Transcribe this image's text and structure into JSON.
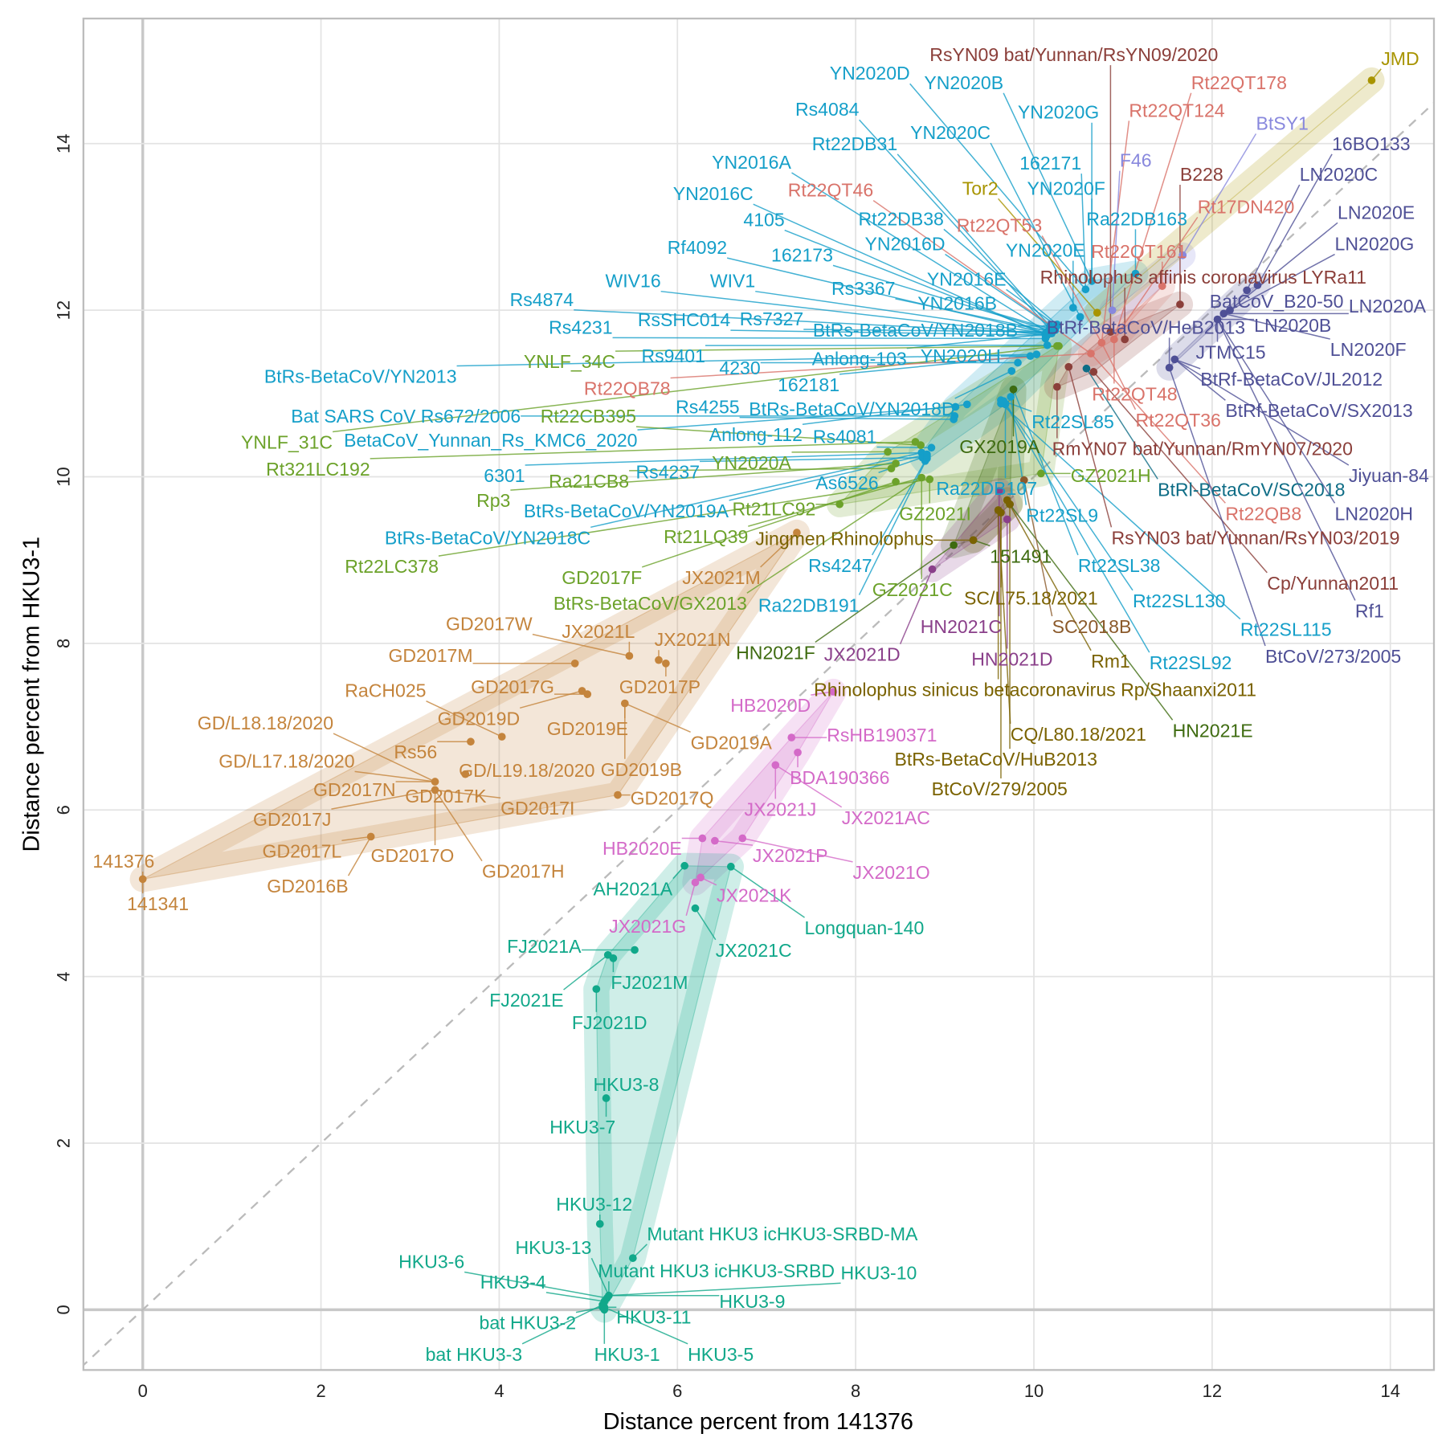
{
  "chart_data": {
    "type": "scatter",
    "xlabel": "Distance percent from 141376",
    "ylabel": "Distance percent from HKU3-1",
    "xlim": [
      -0.66,
      14.48
    ],
    "ylim": [
      -0.72,
      15.48
    ],
    "x_ticks": [
      "0",
      "2",
      "4",
      "6",
      "8",
      "10",
      "12",
      "14"
    ],
    "y_ticks": [
      "0",
      "2",
      "4",
      "6",
      "8",
      "10",
      "12",
      "14"
    ],
    "grid": true,
    "reference_line": "y = x (dashed)",
    "legend": "none",
    "group_colors": {
      "gd": "#c4843c",
      "hb": "#d46ac8",
      "hku3": "#11a88a",
      "rs": "#159fc9",
      "rt": "#6ca22a",
      "dg": "#3e6b10",
      "ol": "#7a6200",
      "br": "#8b5a2b",
      "pu": "#8a3f8a",
      "dr": "#8b3f3a",
      "qt": "#d9736a",
      "sy": "#8888dd",
      "jmd": "#a89400",
      "sl": "#0f6d86",
      "rf": "#4f5096"
    },
    "points": [
      {
        "label": "141376",
        "x": 0,
        "y": 5.17,
        "g": "gd"
      },
      {
        "label": "141341",
        "x": 0,
        "y": 5.17,
        "g": "gd"
      },
      {
        "label": "GD2016B",
        "x": 2.56,
        "y": 5.68,
        "g": "gd"
      },
      {
        "label": "GD2017L",
        "x": 2.56,
        "y": 5.68,
        "g": "gd"
      },
      {
        "label": "GD/L18.18/2020",
        "x": 3.28,
        "y": 6.34,
        "g": "gd"
      },
      {
        "label": "GD/L17.18/2020",
        "x": 3.28,
        "y": 6.34,
        "g": "gd"
      },
      {
        "label": "GD2017N",
        "x": 3.28,
        "y": 6.34,
        "g": "gd"
      },
      {
        "label": "GD2017J",
        "x": 3.28,
        "y": 6.24,
        "g": "gd"
      },
      {
        "label": "GD2017K",
        "x": 3.28,
        "y": 6.24,
        "g": "gd"
      },
      {
        "label": "GD2017O",
        "x": 3.28,
        "y": 6.24,
        "g": "gd"
      },
      {
        "label": "GD2017H",
        "x": 3.28,
        "y": 6.24,
        "g": "gd"
      },
      {
        "label": "GD2017I",
        "x": 3.28,
        "y": 6.24,
        "g": "gd"
      },
      {
        "label": "GD/L19.18/2020",
        "x": 3.62,
        "y": 6.43,
        "g": "gd"
      },
      {
        "label": "Rs56",
        "x": 3.68,
        "y": 6.82,
        "g": "gd"
      },
      {
        "label": "RaCH025",
        "x": 4.03,
        "y": 6.88,
        "g": "gd"
      },
      {
        "label": "GD2019D",
        "x": 4.93,
        "y": 7.43,
        "g": "gd"
      },
      {
        "label": "GD2017G",
        "x": 4.99,
        "y": 7.39,
        "g": "gd"
      },
      {
        "label": "GD2017M",
        "x": 4.85,
        "y": 7.76,
        "g": "gd"
      },
      {
        "label": "GD2017W",
        "x": 5.46,
        "y": 7.85,
        "g": "gd"
      },
      {
        "label": "JX2021L",
        "x": 5.46,
        "y": 7.85,
        "g": "gd"
      },
      {
        "label": "JX2021N",
        "x": 5.79,
        "y": 7.8,
        "g": "gd"
      },
      {
        "label": "GD2017P",
        "x": 5.87,
        "y": 7.76,
        "g": "gd"
      },
      {
        "label": "GD2019E",
        "x": 5.41,
        "y": 7.28,
        "g": "gd"
      },
      {
        "label": "GD2019B",
        "x": 5.41,
        "y": 7.28,
        "g": "gd"
      },
      {
        "label": "GD2019A",
        "x": 5.41,
        "y": 7.28,
        "g": "gd"
      },
      {
        "label": "GD2017Q",
        "x": 5.33,
        "y": 6.18,
        "g": "gd"
      },
      {
        "label": "JX2021M",
        "x": 7.34,
        "y": 9.33,
        "g": "gd"
      },
      {
        "label": "HB2020D",
        "x": 7.75,
        "y": 7.42,
        "g": "hb"
      },
      {
        "label": "RsHB190371",
        "x": 7.28,
        "y": 6.87,
        "g": "hb"
      },
      {
        "label": "BDA190366",
        "x": 7.35,
        "y": 6.69,
        "g": "hb"
      },
      {
        "label": "JX2021J",
        "x": 7.1,
        "y": 6.54,
        "g": "hb"
      },
      {
        "label": "JX2021AC",
        "x": 7.1,
        "y": 6.54,
        "g": "hb"
      },
      {
        "label": "HB2020E",
        "x": 6.28,
        "y": 5.66,
        "g": "hb"
      },
      {
        "label": "JX2021P",
        "x": 6.42,
        "y": 5.63,
        "g": "hb"
      },
      {
        "label": "JX2021O",
        "x": 6.73,
        "y": 5.66,
        "g": "hb"
      },
      {
        "label": "JX2021K",
        "x": 6.26,
        "y": 5.19,
        "g": "hb"
      },
      {
        "label": "JX2021G",
        "x": 6.2,
        "y": 5.13,
        "g": "hb"
      },
      {
        "label": "AH2021A",
        "x": 6.08,
        "y": 5.33,
        "g": "hku3"
      },
      {
        "label": "Longquan-140",
        "x": 6.6,
        "y": 5.32,
        "g": "hku3"
      },
      {
        "label": "JX2021C",
        "x": 6.2,
        "y": 4.82,
        "g": "hku3"
      },
      {
        "label": "FJ2021A",
        "x": 5.52,
        "y": 4.32,
        "g": "hku3"
      },
      {
        "label": "FJ2021M",
        "x": 5.28,
        "y": 4.22,
        "g": "hku3"
      },
      {
        "label": "FJ2021E",
        "x": 5.22,
        "y": 4.26,
        "g": "hku3"
      },
      {
        "label": "FJ2021D",
        "x": 5.09,
        "y": 3.85,
        "g": "hku3"
      },
      {
        "label": "HKU3-8",
        "x": 5.2,
        "y": 2.54,
        "g": "hku3"
      },
      {
        "label": "HKU3-7",
        "x": 5.2,
        "y": 2.54,
        "g": "hku3"
      },
      {
        "label": "HKU3-12",
        "x": 5.13,
        "y": 1.03,
        "g": "hku3"
      },
      {
        "label": "Mutant HKU3 icHKU3-SRBD-MA",
        "x": 5.5,
        "y": 0.62,
        "g": "hku3"
      },
      {
        "label": "HKU3-13",
        "x": 5.23,
        "y": 0.17,
        "g": "hku3"
      },
      {
        "label": "HKU3-6",
        "x": 5.21,
        "y": 0.14,
        "g": "hku3"
      },
      {
        "label": "Mutant HKU3 icHKU3-SRBD",
        "x": 5.23,
        "y": 0.17,
        "g": "hku3"
      },
      {
        "label": "HKU3-10",
        "x": 5.23,
        "y": 0.17,
        "g": "hku3"
      },
      {
        "label": "HKU3-4",
        "x": 5.18,
        "y": 0.1,
        "g": "hku3"
      },
      {
        "label": "HKU3-9",
        "x": 5.23,
        "y": 0.17,
        "g": "hku3"
      },
      {
        "label": "bat HKU3-2",
        "x": 5.16,
        "y": 0.03,
        "g": "hku3"
      },
      {
        "label": "HKU3-11",
        "x": 5.18,
        "y": 0.03,
        "g": "hku3"
      },
      {
        "label": "bat HKU3-3",
        "x": 5.16,
        "y": 0.06,
        "g": "hku3"
      },
      {
        "label": "HKU3-1",
        "x": 5.18,
        "y": 0,
        "g": "hku3"
      },
      {
        "label": "HKU3-5",
        "x": 5.18,
        "y": 0.03,
        "g": "hku3"
      },
      {
        "label": "YN2020D",
        "x": 10.58,
        "y": 12.25,
        "g": "rs"
      },
      {
        "label": "YN2020B",
        "x": 10.65,
        "y": 12.35,
        "g": "rs"
      },
      {
        "label": "Rs4084",
        "x": 10.18,
        "y": 11.77,
        "g": "rs"
      },
      {
        "label": "YN2020G",
        "x": 10.65,
        "y": 12.35,
        "g": "rs"
      },
      {
        "label": "YN2020C",
        "x": 10.52,
        "y": 11.92,
        "g": "rs"
      },
      {
        "label": "Rt22DB31",
        "x": 10.18,
        "y": 11.81,
        "g": "rs"
      },
      {
        "label": "162171",
        "x": 10.58,
        "y": 12.25,
        "g": "rs"
      },
      {
        "label": "YN2016A",
        "x": 10.15,
        "y": 11.74,
        "g": "rs"
      },
      {
        "label": "YN2020F",
        "x": 10.65,
        "y": 12.35,
        "g": "rs"
      },
      {
        "label": "YN2016C",
        "x": 10.13,
        "y": 11.7,
        "g": "rs"
      },
      {
        "label": "4105",
        "x": 10.13,
        "y": 11.72,
        "g": "rs"
      },
      {
        "label": "Rt22DB38",
        "x": 10.26,
        "y": 11.83,
        "g": "rs"
      },
      {
        "label": "Ra22DB163",
        "x": 11.14,
        "y": 12.44,
        "g": "rs"
      },
      {
        "label": "YN2016D",
        "x": 10.24,
        "y": 11.77,
        "g": "rs"
      },
      {
        "label": "Rf4092",
        "x": 10.15,
        "y": 11.72,
        "g": "rs"
      },
      {
        "label": "162173",
        "x": 10.17,
        "y": 11.76,
        "g": "rs"
      },
      {
        "label": "YN2020E",
        "x": 10.44,
        "y": 12.03,
        "g": "rs"
      },
      {
        "label": "WIV16",
        "x": 10.13,
        "y": 11.7,
        "g": "rs"
      },
      {
        "label": "WIV1",
        "x": 10.15,
        "y": 11.72,
        "g": "rs"
      },
      {
        "label": "Rs3367",
        "x": 10.2,
        "y": 11.74,
        "g": "rs"
      },
      {
        "label": "YN2016E",
        "x": 10.26,
        "y": 11.81,
        "g": "rs"
      },
      {
        "label": "YN2016B",
        "x": 10.24,
        "y": 11.76,
        "g": "rs"
      },
      {
        "label": "Rs4874",
        "x": 10.15,
        "y": 11.72,
        "g": "rs"
      },
      {
        "label": "Rs4231",
        "x": 10.13,
        "y": 11.66,
        "g": "rs"
      },
      {
        "label": "RsSHC014",
        "x": 10.15,
        "y": 11.7,
        "g": "rs"
      },
      {
        "label": "Rs7327",
        "x": 10.18,
        "y": 11.74,
        "g": "rs"
      },
      {
        "label": "BtRs-BetaCoV/YN2018B",
        "x": 10.26,
        "y": 11.81,
        "g": "rs"
      },
      {
        "label": "Anlong-103",
        "x": 10.2,
        "y": 11.72,
        "g": "rs"
      },
      {
        "label": "YN2020H",
        "x": 9.96,
        "y": 11.45,
        "g": "rs"
      },
      {
        "label": "Rs9401",
        "x": 10.15,
        "y": 11.58,
        "g": "rs"
      },
      {
        "label": "4230",
        "x": 9.82,
        "y": 11.37,
        "g": "rs"
      },
      {
        "label": "162181",
        "x": 9.96,
        "y": 11.45,
        "g": "rs"
      },
      {
        "label": "BtRs-BetaCoV/YN2013",
        "x": 10.03,
        "y": 11.47,
        "g": "rs"
      },
      {
        "label": "BtRs-BetaCoV/YN2018D",
        "x": 9.75,
        "y": 11.27,
        "g": "rs"
      },
      {
        "label": "Anlong-112",
        "x": 9.25,
        "y": 10.87,
        "g": "rs"
      },
      {
        "label": "Bat SARS CoV Rs672/2006",
        "x": 9.11,
        "y": 10.73,
        "g": "rs"
      },
      {
        "label": "BetaCoV_Yunnan_Rs_KMC6_2020",
        "x": 9.12,
        "y": 10.84,
        "g": "rs"
      },
      {
        "label": "Rs4255",
        "x": 9.1,
        "y": 10.69,
        "g": "rs"
      },
      {
        "label": "Rs4081",
        "x": 8.85,
        "y": 10.35,
        "g": "rs"
      },
      {
        "label": "6301",
        "x": 8.74,
        "y": 10.29,
        "g": "rs"
      },
      {
        "label": "Rs4237",
        "x": 8.75,
        "y": 10.23,
        "g": "rs"
      },
      {
        "label": "As6526",
        "x": 8.8,
        "y": 10.25,
        "g": "rs"
      },
      {
        "label": "Rt22SL85",
        "x": 9.63,
        "y": 10.92,
        "g": "rs"
      },
      {
        "label": "Ra22DB107",
        "x": 9.68,
        "y": 10.87,
        "g": "rs"
      },
      {
        "label": "Rt22SL9",
        "x": 9.74,
        "y": 10.96,
        "g": "rs"
      },
      {
        "label": "Rs4247",
        "x": 8.78,
        "y": 10.19,
        "g": "rs"
      },
      {
        "label": "Ra22DB191",
        "x": 8.8,
        "y": 10.22,
        "g": "rs"
      },
      {
        "label": "BtRs-BetaCoV/YN2018C",
        "x": 8.74,
        "y": 10.29,
        "g": "rs"
      },
      {
        "label": "BtRs-BetaCoV/YN2019A",
        "x": 8.8,
        "y": 10.27,
        "g": "rs"
      },
      {
        "label": "Rt22SL38",
        "x": 9.77,
        "y": 11.05,
        "g": "rs"
      },
      {
        "label": "Rt22SL130",
        "x": 9.68,
        "y": 10.88,
        "g": "rs"
      },
      {
        "label": "Rt22SL115",
        "x": 9.63,
        "y": 10.88,
        "g": "rs"
      },
      {
        "label": "Rt22SL92",
        "x": 9.66,
        "y": 10.91,
        "g": "rs"
      },
      {
        "label": "YNLF_34C",
        "x": 10.28,
        "y": 11.57,
        "g": "rt"
      },
      {
        "label": "YNLF_31C",
        "x": 10.26,
        "y": 11.57,
        "g": "rt"
      },
      {
        "label": "Rt321LC192",
        "x": 8.67,
        "y": 10.42,
        "g": "rt"
      },
      {
        "label": "Rt22CB395",
        "x": 8.73,
        "y": 10.38,
        "g": "rt"
      },
      {
        "label": "YN2020A",
        "x": 8.36,
        "y": 10.3,
        "g": "rt"
      },
      {
        "label": "Ra21CB8",
        "x": 8.4,
        "y": 10.1,
        "g": "rt"
      },
      {
        "label": "Rp3",
        "x": 8.45,
        "y": 10.16,
        "g": "rt"
      },
      {
        "label": "Rt21LQ39",
        "x": 8.74,
        "y": 9.99,
        "g": "rt"
      },
      {
        "label": "Rt21LC92",
        "x": 7.82,
        "y": 9.67,
        "g": "rt"
      },
      {
        "label": "Rt22LC378",
        "x": 8.83,
        "y": 9.97,
        "g": "rt"
      },
      {
        "label": "BtRs-BetaCoV/GX2013",
        "x": 8.74,
        "y": 9.99,
        "g": "rt"
      },
      {
        "label": "GD2017F",
        "x": 8.45,
        "y": 9.94,
        "g": "rt"
      },
      {
        "label": "GZ2021I",
        "x": 8.83,
        "y": 9.97,
        "g": "rt"
      },
      {
        "label": "GZ2021C",
        "x": 8.74,
        "y": 9.99,
        "g": "rt"
      },
      {
        "label": "GZ2021H",
        "x": 10.08,
        "y": 10.04,
        "g": "rt"
      },
      {
        "label": "GX2019A",
        "x": 9.77,
        "y": 11.05,
        "g": "dg"
      },
      {
        "label": "HN2021F",
        "x": 9.1,
        "y": 9.18,
        "g": "dg"
      },
      {
        "label": "151491",
        "x": 9.32,
        "y": 9.24,
        "g": "dg"
      },
      {
        "label": "HN2021E",
        "x": 9.73,
        "y": 9.67,
        "g": "dg"
      },
      {
        "label": "Jingmen Rhinolophus",
        "x": 9.32,
        "y": 9.24,
        "g": "ol"
      },
      {
        "label": "Rhinolophus sinicus betacoronavirus Rp/Shaanxi2011",
        "x": 9.6,
        "y": 9.6,
        "g": "ol"
      },
      {
        "label": "SC/L75.18/2021",
        "x": 9.63,
        "y": 9.57,
        "g": "ol"
      },
      {
        "label": "Rm1",
        "x": 9.7,
        "y": 9.72,
        "g": "ol"
      },
      {
        "label": "BtRs-BetaCoV/HuB2013",
        "x": 9.73,
        "y": 9.67,
        "g": "ol"
      },
      {
        "label": "CQ/L80.18/2021",
        "x": 9.6,
        "y": 9.6,
        "g": "ol"
      },
      {
        "label": "BtCoV/279/2005",
        "x": 9.63,
        "y": 9.57,
        "g": "ol"
      },
      {
        "label": "SC2018B",
        "x": 9.89,
        "y": 9.96,
        "g": "br"
      },
      {
        "label": "HN2021C",
        "x": 9.61,
        "y": 9.83,
        "g": "pu"
      },
      {
        "label": "HN2021D",
        "x": 9.7,
        "y": 9.49,
        "g": "pu"
      },
      {
        "label": "JX2021D",
        "x": 8.86,
        "y": 8.89,
        "g": "pu"
      },
      {
        "label": "RsYN09 bat/Yunnan/RsYN09/2020",
        "x": 10.86,
        "y": 11.74,
        "g": "dr"
      },
      {
        "label": "B228",
        "x": 11.64,
        "y": 12.07,
        "g": "dr"
      },
      {
        "label": "Rhinolophus affinis coronavirus LYRa11",
        "x": 11.02,
        "y": 11.65,
        "g": "dr"
      },
      {
        "label": "RmYN07 bat/Yunnan/RmYN07/2020",
        "x": 10.26,
        "y": 11.08,
        "g": "dr"
      },
      {
        "label": "RsYN03 bat/Yunnan/RsYN03/2019",
        "x": 10.39,
        "y": 11.32,
        "g": "dr"
      },
      {
        "label": "Cp/Yunnan2011",
        "x": 10.67,
        "y": 11.26,
        "g": "dr"
      },
      {
        "label": "Rt22QT178",
        "x": 10.9,
        "y": 11.65,
        "g": "qt"
      },
      {
        "label": "Rt22QT124",
        "x": 10.76,
        "y": 11.61,
        "g": "qt"
      },
      {
        "label": "Rt22QT46",
        "x": 10.64,
        "y": 11.48,
        "g": "qt"
      },
      {
        "label": "Rt22QT53",
        "x": 10.76,
        "y": 11.61,
        "g": "qt"
      },
      {
        "label": "Rt22QT161",
        "x": 11.44,
        "y": 12.29,
        "g": "qt"
      },
      {
        "label": "Rt17DN420",
        "x": 10.9,
        "y": 11.65,
        "g": "qt"
      },
      {
        "label": "Rt22QB78",
        "x": 10.64,
        "y": 11.48,
        "g": "qt"
      },
      {
        "label": "Rt22QT48",
        "x": 10.9,
        "y": 11.65,
        "g": "qt"
      },
      {
        "label": "Rt22QT36",
        "x": 10.76,
        "y": 11.61,
        "g": "qt"
      },
      {
        "label": "Rt22QB8",
        "x": 10.64,
        "y": 11.48,
        "g": "qt"
      },
      {
        "label": "BtSY1",
        "x": 11.67,
        "y": 12.66,
        "g": "sy"
      },
      {
        "label": "F46",
        "x": 10.88,
        "y": 12.0,
        "g": "sy"
      },
      {
        "label": "JMD",
        "x": 13.79,
        "y": 14.76,
        "g": "jmd"
      },
      {
        "label": "Tor2",
        "x": 10.71,
        "y": 11.97,
        "g": "jmd"
      },
      {
        "label": "BtRl-BetaCoV/SC2018",
        "x": 10.59,
        "y": 11.3,
        "g": "sl"
      },
      {
        "label": "16BO133",
        "x": 12.51,
        "y": 12.3,
        "g": "rf"
      },
      {
        "label": "LN2020C",
        "x": 12.39,
        "y": 12.24,
        "g": "rf"
      },
      {
        "label": "LN2020E",
        "x": 12.2,
        "y": 12.0,
        "g": "rf"
      },
      {
        "label": "LN2020G",
        "x": 12.13,
        "y": 11.96,
        "g": "rf"
      },
      {
        "label": "BatCoV_B20-50",
        "x": 12.39,
        "y": 12.24,
        "g": "rf"
      },
      {
        "label": "LN2020A",
        "x": 12.13,
        "y": 11.96,
        "g": "rf"
      },
      {
        "label": "LN2020B",
        "x": 12.06,
        "y": 11.89,
        "g": "rf"
      },
      {
        "label": "JTMC15",
        "x": 12.06,
        "y": 11.89,
        "g": "rf"
      },
      {
        "label": "LN2020F",
        "x": 12.13,
        "y": 11.96,
        "g": "rf"
      },
      {
        "label": "BtRf-BetaCoV/JL2012",
        "x": 11.58,
        "y": 11.41,
        "g": "rf"
      },
      {
        "label": "BtRf-BetaCoV/SX2013",
        "x": 11.58,
        "y": 11.41,
        "g": "rf"
      },
      {
        "label": "LN2020H",
        "x": 12.06,
        "y": 11.89,
        "g": "rf"
      },
      {
        "label": "Jiyuan-84",
        "x": 11.58,
        "y": 11.41,
        "g": "rf"
      },
      {
        "label": "BtRf-BetaCoV/HeB2013",
        "x": 11.52,
        "y": 11.31,
        "g": "rf"
      },
      {
        "label": "BtCoV/273/2005",
        "x": 11.52,
        "y": 11.31,
        "g": "rf"
      },
      {
        "label": "Rf1",
        "x": 12.06,
        "y": 11.89,
        "g": "rf"
      }
    ]
  }
}
